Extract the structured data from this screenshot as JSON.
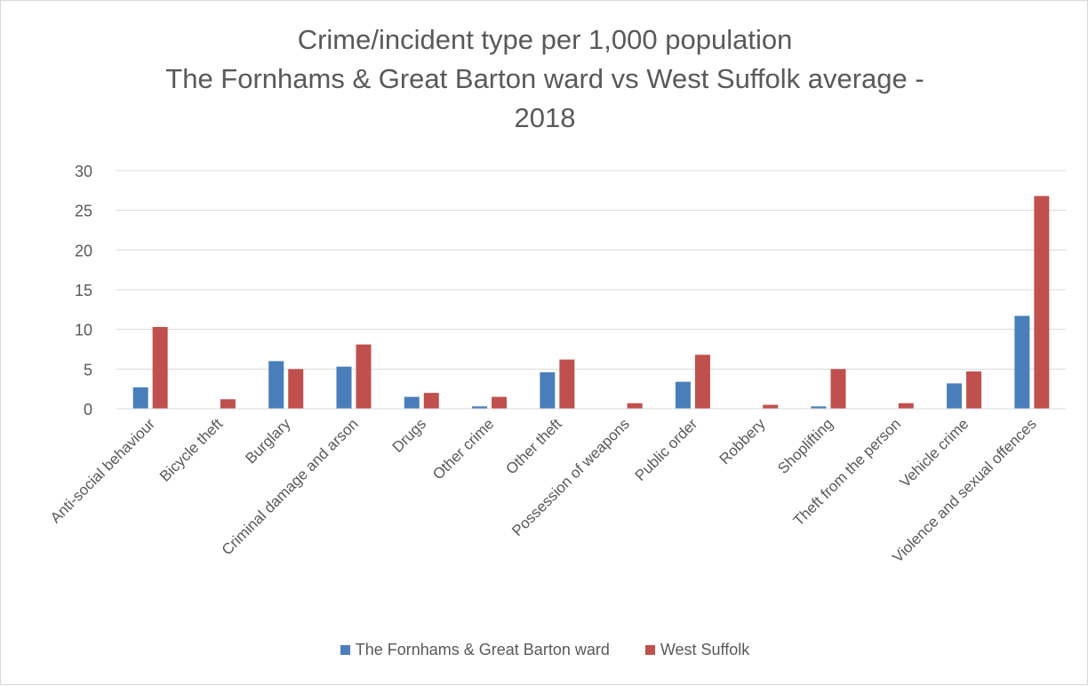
{
  "chart_data": {
    "type": "bar",
    "title_lines": [
      "Crime/incident type per 1,000 population",
      "The Fornhams & Great Barton ward vs West Suffolk average -",
      "2018"
    ],
    "categories": [
      "Anti-social behaviour",
      "Bicycle theft",
      "Burglary",
      "Criminal damage and arson",
      "Drugs",
      "Other crime",
      "Other theft",
      "Possession of weapons",
      "Public order",
      "Robbery",
      "Shoplifting",
      "Theft from the person",
      "Vehicle crime",
      "Violence and sexual offences"
    ],
    "series": [
      {
        "name": "The Fornhams & Great Barton ward",
        "color": "#4a7ebb",
        "values": [
          2.7,
          0,
          6.0,
          5.3,
          1.5,
          0.3,
          4.6,
          0,
          3.4,
          0,
          0.3,
          0,
          3.2,
          11.7
        ]
      },
      {
        "name": "West Suffolk",
        "color": "#c0504d",
        "values": [
          10.3,
          1.2,
          5.0,
          8.1,
          2.0,
          1.5,
          6.2,
          0.7,
          6.8,
          0.5,
          5.0,
          0.7,
          4.7,
          26.8
        ]
      }
    ],
    "ylim": [
      0,
      30
    ],
    "yticks": [
      0,
      5,
      10,
      15,
      20,
      25,
      30
    ],
    "grid": true,
    "legend": "bottom"
  }
}
